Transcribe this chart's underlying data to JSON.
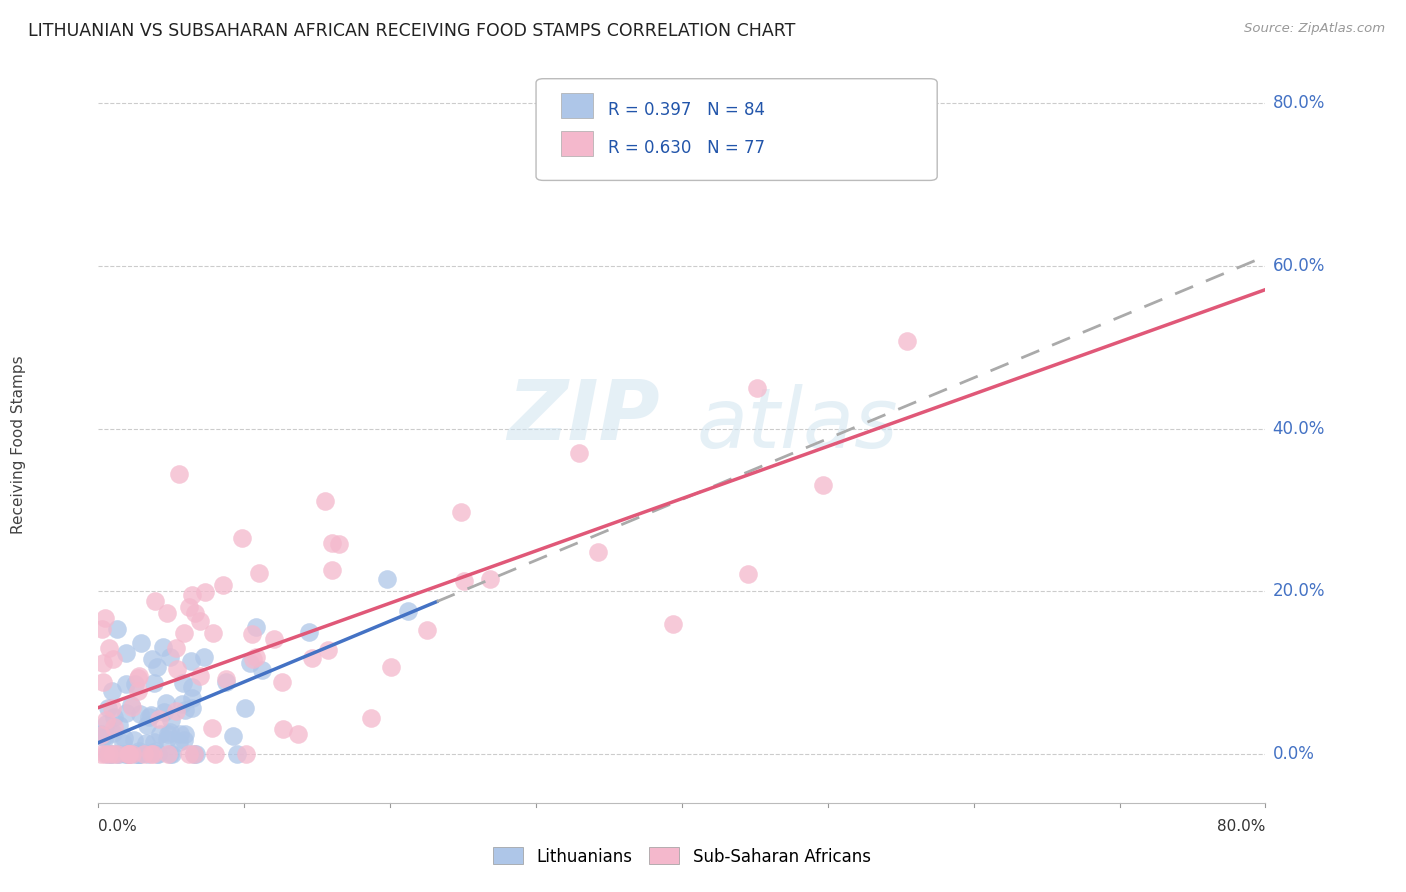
{
  "title": "LITHUANIAN VS SUBSAHARAN AFRICAN RECEIVING FOOD STAMPS CORRELATION CHART",
  "source": "Source: ZipAtlas.com",
  "ylabel": "Receiving Food Stamps",
  "xmin": 0.0,
  "xmax": 0.8,
  "ymin": -0.06,
  "ymax": 0.85,
  "blue_R": 0.397,
  "blue_N": 84,
  "pink_R": 0.63,
  "pink_N": 77,
  "blue_color": "#aec6e8",
  "pink_color": "#f4b8cc",
  "blue_line_color": "#4472c4",
  "pink_line_color": "#e05878",
  "dashed_color": "#aaaaaa",
  "legend_label_blue": "Lithuanians",
  "legend_label_pink": "Sub-Saharan Africans",
  "grid_color": "#cccccc",
  "ytick_vals": [
    0.0,
    0.2,
    0.4,
    0.6,
    0.8
  ],
  "ytick_labels": [
    "0.0%",
    "20.0%",
    "40.0%",
    "60.0%",
    "80.0%"
  ],
  "right_label_color": "#4472c4",
  "watermark_color": "#d0e4f0"
}
